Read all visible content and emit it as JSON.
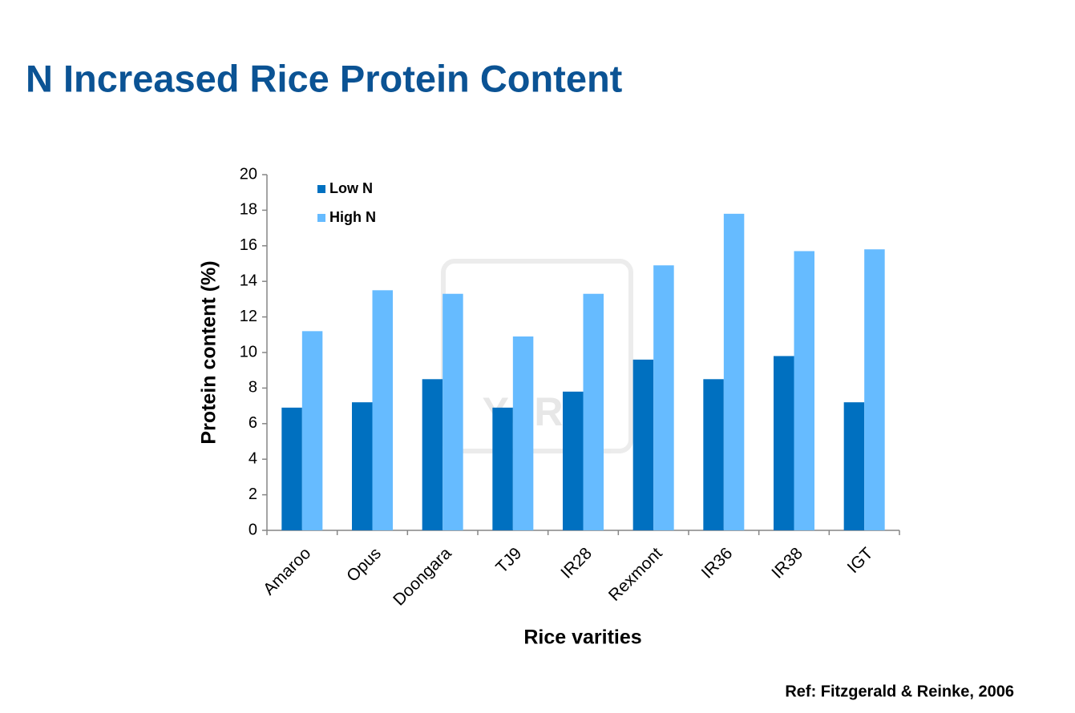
{
  "chart_data": {
    "type": "bar",
    "title": "N Increased Rice Protein Content",
    "watermark": "YARA",
    "categories": [
      "Amaroo",
      "Opus",
      "Doongara",
      "TJ9",
      "IR28",
      "Rexmont",
      "IR36",
      "IR38",
      "IGT"
    ],
    "series": [
      {
        "name": "Low N",
        "color": "#0070c0",
        "values": [
          6.9,
          7.2,
          8.5,
          6.9,
          7.8,
          9.6,
          8.5,
          9.8,
          7.2
        ]
      },
      {
        "name": "High N",
        "color": "#66bbff",
        "values": [
          11.2,
          13.5,
          13.3,
          10.9,
          13.3,
          14.9,
          17.8,
          15.7,
          15.8
        ]
      }
    ],
    "ylim": [
      0,
      20
    ],
    "yticks": [
      0,
      2,
      4,
      6,
      8,
      10,
      12,
      14,
      16,
      18,
      20
    ],
    "y_label": "Protein content (%)",
    "x_label": "Rice varities",
    "legend": "top-left",
    "grid": false,
    "reference": "Ref: Fitzgerald & Reinke, 2006"
  }
}
